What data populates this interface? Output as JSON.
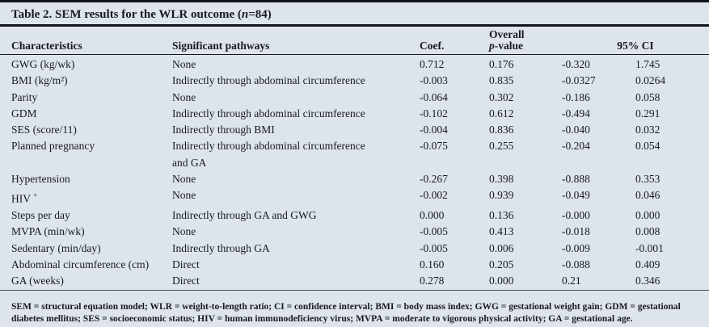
{
  "title": {
    "prefix": "Table 2. SEM results for the WLR outcome (",
    "n_italic": "n",
    "suffix": "=84)"
  },
  "table": {
    "headers": {
      "characteristics": "Characteristics",
      "pathways": "Significant pathways",
      "coef": "Coef.",
      "pvalue_line1": "Overall",
      "pvalue_italic": "p",
      "pvalue_rest": "-value",
      "ci": "95% CI"
    },
    "rows": [
      {
        "characteristic": "GWG (kg/wk)",
        "pathway": "None",
        "coef": "0.712",
        "p": "0.176",
        "ci_low": "-0.320",
        "ci_high": "1.745"
      },
      {
        "characteristic": "BMI (kg/m²)",
        "pathway": "Indirectly through abdominal circumference",
        "coef": "-0.003",
        "p": "0.835",
        "ci_low": "-0.0327",
        "ci_high": "0.0264"
      },
      {
        "characteristic": "Parity",
        "pathway": "None",
        "coef": "-0.064",
        "p": "0.302",
        "ci_low": "-0.186",
        "ci_high": "0.058"
      },
      {
        "characteristic": "GDM",
        "pathway": "Indirectly through abdominal circumference",
        "coef": "-0.102",
        "p": "0.612",
        "ci_low": "-0.494",
        "ci_high": "0.291"
      },
      {
        "characteristic": "SES (score/11)",
        "pathway": "Indirectly through BMI",
        "coef": "-0.004",
        "p": "0.836",
        "ci_low": "-0.040",
        "ci_high": "0.032"
      },
      {
        "characteristic": "Planned pregnancy",
        "pathway": "Indirectly through abdominal circumference",
        "pathway_line2": "and GA",
        "coef": "-0.075",
        "p": "0.255",
        "ci_low": "-0.204",
        "ci_high": "0.054"
      },
      {
        "characteristic": "Hypertension",
        "pathway": "None",
        "coef": "-0.267",
        "p": "0.398",
        "ci_low": "-0.888",
        "ci_high": "0.353"
      },
      {
        "characteristic": "HIV",
        "characteristic_sup": "+",
        "pathway": "None",
        "coef": "-0.002",
        "p": "0.939",
        "ci_low": "-0.049",
        "ci_high": "0.046"
      },
      {
        "characteristic": "Steps per day",
        "pathway": "Indirectly through GA and GWG",
        "coef": "0.000",
        "p": "0.136",
        "ci_low": "-0.000",
        "ci_high": "0.000"
      },
      {
        "characteristic": "MVPA (min/wk)",
        "pathway": "None",
        "coef": "-0.005",
        "p": "0.413",
        "ci_low": "-0.018",
        "ci_high": "0.008"
      },
      {
        "characteristic": "Sedentary (min/day)",
        "pathway": "Indirectly through GA",
        "coef": "-0.005",
        "p": "0.006",
        "ci_low": "-0.009",
        "ci_high": "-0.001"
      },
      {
        "characteristic": "Abdominal circumference (cm)",
        "pathway": "Direct",
        "coef": "0.160",
        "p": "0.205",
        "ci_low": "-0.088",
        "ci_high": "0.409"
      },
      {
        "characteristic": "GA (weeks)",
        "pathway": "Direct",
        "coef": "0.278",
        "p": "0.000",
        "ci_low": "0.21",
        "ci_high": "0.346"
      }
    ]
  },
  "footnote": "SEM = structural equation model; WLR = weight-to-length ratio; CI = confidence interval; BMI = body mass index; GWG = gestational weight gain; GDM = gestational diabetes mellitus; SES = socioeconomic status; HIV = human immunodeficiency virus; MVPA = moderate to vigorous physical activity; GA = gestational age.",
  "colors": {
    "background": "#dde4ec",
    "text": "#191922",
    "rule": "#14141c"
  }
}
